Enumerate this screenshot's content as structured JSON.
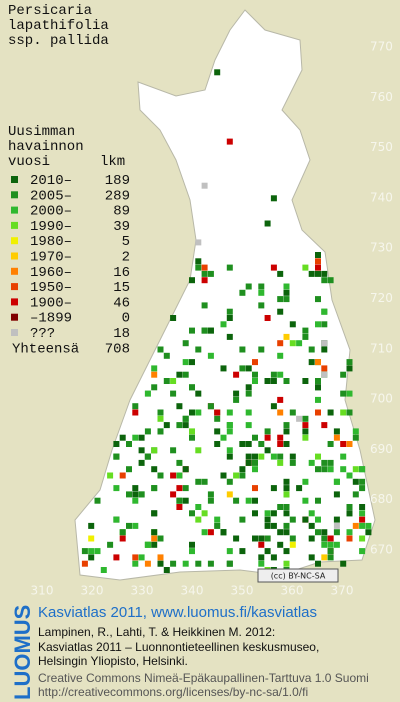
{
  "title": [
    "Persicaria",
    "lapathifolia",
    "ssp. pallida"
  ],
  "legend": {
    "heading": [
      "Uusimman",
      "havainnon"
    ],
    "col_headers": [
      "vuosi",
      "lkm"
    ],
    "rows": [
      {
        "label": "2010–",
        "count": 189,
        "color": "#0c640c"
      },
      {
        "label": "2005–",
        "count": 289,
        "color": "#1f8f1f"
      },
      {
        "label": "2000–",
        "count": 89,
        "color": "#2fb82f"
      },
      {
        "label": "1990–",
        "count": 39,
        "color": "#66dd22"
      },
      {
        "label": "1980–",
        "count": 5,
        "color": "#f0f000"
      },
      {
        "label": "1970–",
        "count": 2,
        "color": "#ffcc00"
      },
      {
        "label": "1960–",
        "count": 16,
        "color": "#ff8000"
      },
      {
        "label": "1950–",
        "count": 15,
        "color": "#e84000"
      },
      {
        "label": "1900–",
        "count": 46,
        "color": "#cc0000"
      },
      {
        "label": "–1899",
        "count": 0,
        "color": "#800000"
      },
      {
        "label": "???",
        "count": 18,
        "color": "#c0c0c0"
      }
    ],
    "total": {
      "label": "Yhteensä",
      "count": 708
    }
  },
  "grid": {
    "x_labels": [
      310,
      320,
      330,
      340,
      350,
      360,
      370
    ],
    "y_labels": [
      670,
      680,
      690,
      700,
      710,
      720,
      730,
      740,
      750,
      760,
      770
    ]
  },
  "license_badge": "(cc) BY-NC-SA",
  "footer": {
    "brand": "LUOMUS",
    "heading": "Kasviatlas 2011, www.luomus.fi/kasviatlas",
    "citation": [
      "Lampinen, R., Lahti, T. & Heikkinen M. 2012:",
      "Kasviatlas 2011 – Luonnontieteellinen keskusmuseo,",
      "Helsingin Yliopisto, Helsinki."
    ],
    "license": [
      "Creative Commons Nimeä-Epäkaupallinen-Tarttuva 1.0 Suomi",
      "http://creativecommons.org/licenses/by-nc-sa/1.0/fi"
    ]
  }
}
